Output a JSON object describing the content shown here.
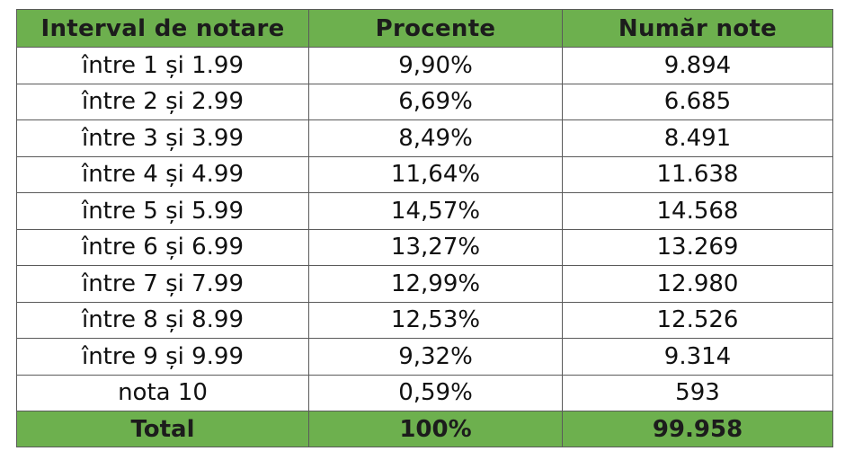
{
  "table": {
    "headers": [
      "Interval de notare",
      "Procente",
      "Număr note"
    ],
    "rows": [
      [
        "între 1 și 1.99",
        "9,90%",
        "9.894"
      ],
      [
        "între 2 și 2.99",
        "6,69%",
        "6.685"
      ],
      [
        "între 3 și 3.99",
        "8,49%",
        "8.491"
      ],
      [
        "între 4 și 4.99",
        "11,64%",
        "11.638"
      ],
      [
        "între 5 și 5.99",
        "14,57%",
        "14.568"
      ],
      [
        "între 6 și 6.99",
        "13,27%",
        "13.269"
      ],
      [
        "între 7 și 7.99",
        "12,99%",
        "12.980"
      ],
      [
        "între 8 și 8.99",
        "12,53%",
        "12.526"
      ],
      [
        "între 9 și 9.99",
        "9,32%",
        "9.314"
      ],
      [
        "nota 10",
        "0,59%",
        "593"
      ]
    ],
    "total": [
      "Total",
      "100%",
      "99.958"
    ]
  },
  "colors": {
    "header_bg": "#6db04e",
    "total_bg": "#6db04e",
    "border": "#5a5a5a"
  }
}
